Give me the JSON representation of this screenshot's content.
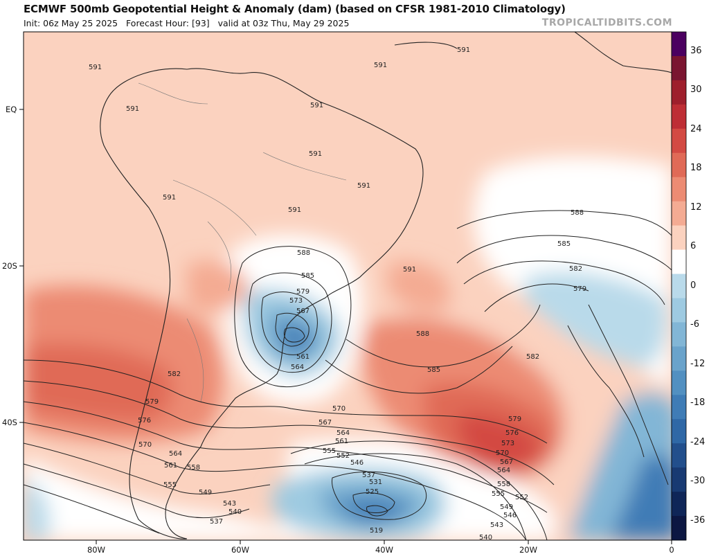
{
  "header": {
    "title": "ECMWF 500mb Geopotential Height & Anomaly (dam) (based on CFSR 1981-2010 Climatology)",
    "subtitle_init": "Init: 06z May 25 2025",
    "subtitle_forecast": "Forecast Hour: [93]",
    "subtitle_valid": "valid at 03z Thu, May 29 2025",
    "brand": "TROPICALTIDBITS.COM"
  },
  "axes": {
    "lat_labels": [
      "EQ",
      "20S",
      "40S"
    ],
    "lon_labels": [
      "80W",
      "60W",
      "40W",
      "20W",
      "0"
    ]
  },
  "colorbar": {
    "labels": [
      "36",
      "30",
      "24",
      "18",
      "12",
      "6",
      "0",
      "-6",
      "-12",
      "-18",
      "-24",
      "-30",
      "-36"
    ],
    "colors": [
      "#4b0060",
      "#7a1530",
      "#9e1f2c",
      "#be2e35",
      "#d34a43",
      "#e06a57",
      "#ec8b73",
      "#f4ab93",
      "#fbd2bf",
      "#ffffff",
      "#b9daea",
      "#9ecae1",
      "#82b6d6",
      "#6aa3cb",
      "#5290c1",
      "#3f7cb6",
      "#2f68a6",
      "#224f8c",
      "#183a72",
      "#0f2658",
      "#0c1742"
    ],
    "note": "shaded anomaly scale (dam)"
  },
  "contours": {
    "height_labels": [
      "591",
      "591",
      "591",
      "591",
      "591",
      "591",
      "591",
      "591",
      "591",
      "591",
      "588",
      "588",
      "588",
      "585",
      "585",
      "585",
      "582",
      "582",
      "582",
      "579",
      "579",
      "579",
      "579",
      "576",
      "576",
      "573",
      "573",
      "570",
      "570",
      "570",
      "567",
      "567",
      "567",
      "564",
      "564",
      "564",
      "564",
      "561",
      "561",
      "561",
      "558",
      "558",
      "555",
      "555",
      "555",
      "552",
      "552",
      "549",
      "549",
      "546",
      "546",
      "543",
      "543",
      "540",
      "540",
      "537",
      "537",
      "531",
      "525",
      "519"
    ]
  },
  "features": {
    "cutoff_low_south_america": "closed low over southern Brazil",
    "deep_trough": "trough near 40W southern Atlantic",
    "ridge": "warm ridge near 20W"
  }
}
